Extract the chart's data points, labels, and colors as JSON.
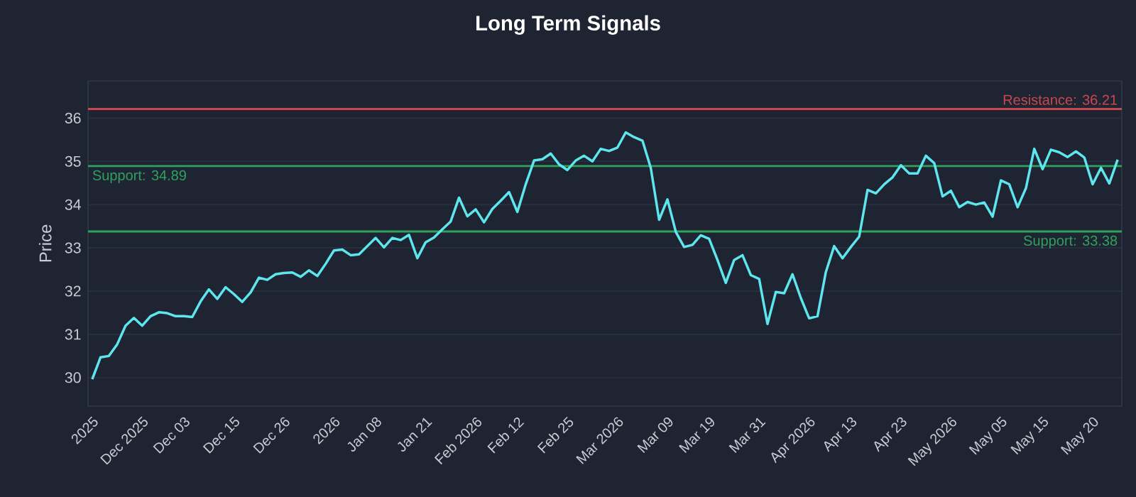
{
  "chart_data": {
    "type": "line",
    "title": "Long Term Signals",
    "ylabel": "Price",
    "categories": [
      "2025",
      null,
      null,
      null,
      null,
      null,
      "Dec 2025",
      null,
      null,
      null,
      null,
      "Dec 03",
      null,
      null,
      null,
      null,
      null,
      "Dec 15",
      null,
      null,
      null,
      null,
      null,
      "Dec 26",
      null,
      null,
      null,
      null,
      null,
      "2026",
      null,
      null,
      null,
      null,
      "Jan 08",
      null,
      null,
      null,
      null,
      null,
      "Jan 21",
      null,
      null,
      null,
      null,
      null,
      "Feb 2026",
      null,
      null,
      null,
      null,
      "Feb 12",
      null,
      null,
      null,
      null,
      null,
      "Feb 25",
      null,
      null,
      null,
      null,
      null,
      "Mar 2026",
      null,
      null,
      null,
      null,
      null,
      "Mar 09",
      null,
      null,
      null,
      null,
      "Mar 19",
      null,
      null,
      null,
      null,
      null,
      "Mar 31",
      null,
      null,
      null,
      null,
      null,
      "Apr 2026",
      null,
      null,
      null,
      null,
      "Apr 13",
      null,
      null,
      null,
      null,
      null,
      "Apr 23",
      null,
      null,
      null,
      null,
      null,
      "May 2026",
      null,
      null,
      null,
      null,
      null,
      "May 05",
      null,
      null,
      null,
      null,
      "May 15",
      null,
      null,
      null,
      null,
      null,
      "May 20",
      null,
      null,
      null
    ],
    "series": [
      {
        "color": "#5ee6ee",
        "values": [
          29.96,
          30.47,
          30.5,
          30.77,
          31.2,
          31.38,
          31.2,
          31.42,
          31.51,
          31.49,
          31.42,
          31.42,
          31.4,
          31.76,
          32.04,
          31.82,
          32.09,
          31.93,
          31.75,
          31.97,
          32.31,
          32.26,
          32.39,
          32.42,
          32.43,
          32.33,
          32.48,
          32.35,
          32.63,
          32.94,
          32.96,
          32.83,
          32.85,
          33.04,
          33.23,
          33.01,
          33.23,
          33.18,
          33.3,
          32.76,
          33.13,
          33.24,
          33.43,
          33.61,
          34.16,
          33.73,
          33.89,
          33.59,
          33.9,
          34.09,
          34.29,
          33.83,
          34.47,
          35.02,
          35.05,
          35.18,
          34.93,
          34.8,
          35.02,
          35.13,
          35.0,
          35.29,
          35.24,
          35.32,
          35.67,
          35.56,
          35.48,
          34.85,
          33.65,
          34.12,
          33.37,
          33.02,
          33.07,
          33.29,
          33.21,
          32.72,
          32.19,
          32.72,
          32.83,
          32.37,
          32.28,
          31.24,
          31.98,
          31.95,
          32.39,
          31.84,
          31.37,
          31.42,
          32.44,
          33.04,
          32.76,
          33.02,
          33.26,
          34.34,
          34.26,
          34.47,
          34.63,
          34.91,
          34.72,
          34.72,
          35.13,
          34.96,
          34.19,
          34.32,
          33.94,
          34.06,
          34.0,
          34.05,
          33.72,
          34.56,
          34.47,
          33.94,
          34.38,
          35.29,
          34.82,
          35.27,
          35.21,
          35.1,
          35.23,
          35.09,
          34.47,
          34.85,
          34.49,
          35.04
        ]
      }
    ],
    "ylim": [
      29.34,
      36.86
    ],
    "yticks": [
      30,
      31,
      32,
      33,
      34,
      35,
      36
    ],
    "grid": "y",
    "ref_lines": [
      {
        "axis": "y",
        "value": 36.21,
        "label": "Resistance: 36.21",
        "color": "#c9474d"
      },
      {
        "axis": "y",
        "value": 34.89,
        "label": "Support: 34.89",
        "color": "#2fa15c"
      },
      {
        "axis": "y",
        "value": 33.38,
        "label": "Support: 33.38",
        "color": "#2fa15c"
      }
    ]
  }
}
